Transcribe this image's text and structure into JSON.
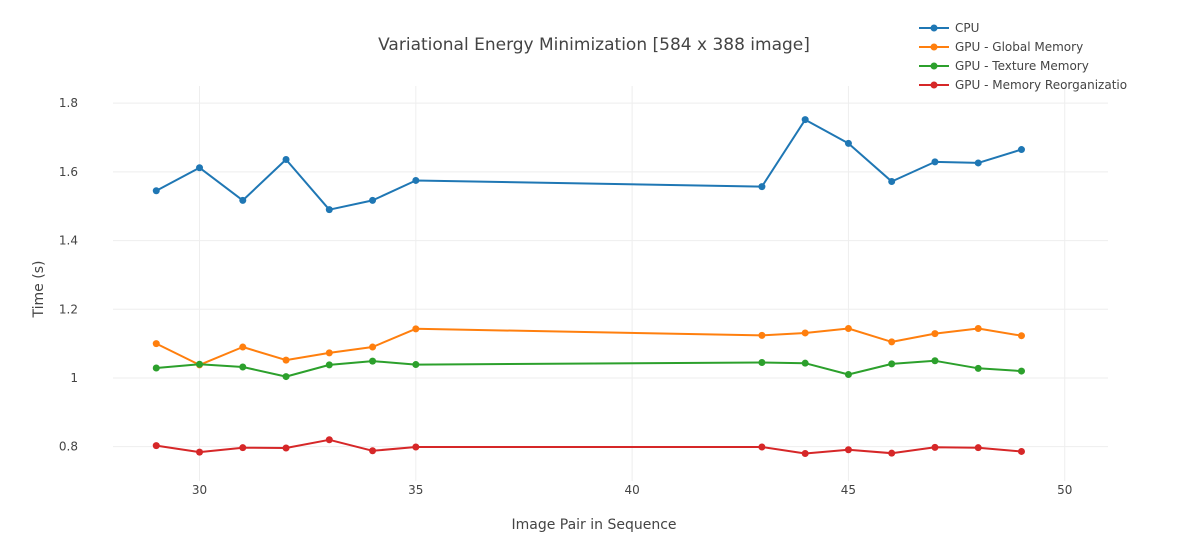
{
  "chart_data": {
    "type": "line",
    "title": "Variational Energy Minimization [584 x 388 image]",
    "xlabel": "Image Pair in Sequence",
    "ylabel": "Time (s)",
    "xlim": [
      28,
      51
    ],
    "ylim": [
      0.7,
      1.85
    ],
    "xticks": [
      30,
      35,
      40,
      45,
      50
    ],
    "yticks": [
      0.8,
      1,
      1.2,
      1.4,
      1.6,
      1.8
    ],
    "ytick_labels": [
      "0.8",
      "1",
      "1.2",
      "1.4",
      "1.6",
      "1.8"
    ],
    "grid": true,
    "legend_position": "top-right",
    "x": [
      29,
      30,
      31,
      32,
      33,
      34,
      35,
      43,
      44,
      45,
      46,
      47,
      48,
      49
    ],
    "series": [
      {
        "name": "CPU",
        "color": "#1f77b4",
        "values": [
          1.545,
          1.612,
          1.517,
          1.636,
          1.49,
          1.517,
          1.575,
          1.557,
          1.752,
          1.683,
          1.572,
          1.629,
          1.626,
          1.665
        ]
      },
      {
        "name": "GPU - Global Memory",
        "color": "#ff7f0e",
        "values": [
          1.1,
          1.038,
          1.09,
          1.052,
          1.073,
          1.09,
          1.143,
          1.124,
          1.131,
          1.144,
          1.105,
          1.129,
          1.144,
          1.123
        ]
      },
      {
        "name": "GPU - Texture Memory",
        "color": "#2ca02c",
        "values": [
          1.029,
          1.04,
          1.032,
          1.004,
          1.038,
          1.049,
          1.039,
          1.045,
          1.043,
          1.01,
          1.041,
          1.05,
          1.028,
          1.02
        ]
      },
      {
        "name": "GPU - Memory Reorganizatio",
        "color": "#d62728",
        "values": [
          0.803,
          0.784,
          0.797,
          0.796,
          0.82,
          0.788,
          0.799,
          0.799,
          0.78,
          0.791,
          0.781,
          0.798,
          0.797,
          0.786
        ]
      }
    ]
  }
}
